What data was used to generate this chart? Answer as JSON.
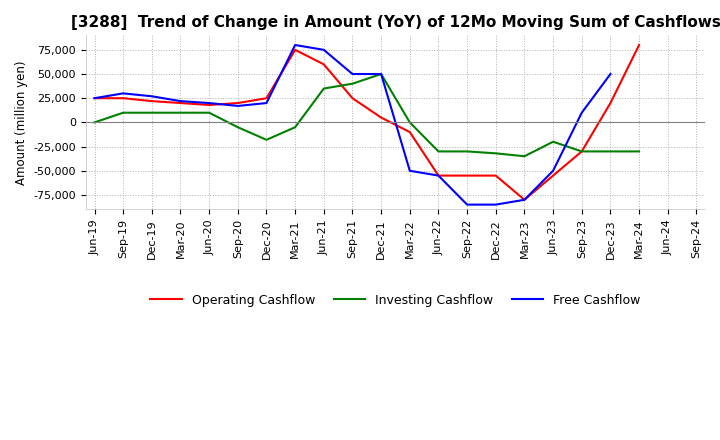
{
  "title": "[3288]  Trend of Change in Amount (YoY) of 12Mo Moving Sum of Cashflows",
  "ylabel": "Amount (million yen)",
  "ylim": [
    -90000,
    90000
  ],
  "yticks": [
    -75000,
    -50000,
    -25000,
    0,
    25000,
    50000,
    75000
  ],
  "x_labels": [
    "Jun-19",
    "Sep-19",
    "Dec-19",
    "Mar-20",
    "Jun-20",
    "Sep-20",
    "Dec-20",
    "Mar-21",
    "Jun-21",
    "Sep-21",
    "Dec-21",
    "Mar-22",
    "Jun-22",
    "Sep-22",
    "Dec-22",
    "Mar-23",
    "Jun-23",
    "Sep-23",
    "Dec-23",
    "Mar-24",
    "Jun-24",
    "Sep-24"
  ],
  "operating": [
    25000,
    25000,
    22000,
    20000,
    18000,
    20000,
    25000,
    75000,
    60000,
    25000,
    5000,
    -10000,
    -55000,
    -55000,
    -55000,
    -80000,
    -55000,
    -30000,
    20000,
    80000,
    null,
    null
  ],
  "investing": [
    0,
    10000,
    10000,
    10000,
    10000,
    -5000,
    -18000,
    -5000,
    35000,
    40000,
    50000,
    0,
    -30000,
    -30000,
    -32000,
    -35000,
    -20000,
    -30000,
    -30000,
    -30000,
    null,
    null
  ],
  "free": [
    25000,
    30000,
    27000,
    22000,
    20000,
    17000,
    20000,
    80000,
    75000,
    50000,
    50000,
    -50000,
    -55000,
    -85000,
    -85000,
    -80000,
    -50000,
    10000,
    50000,
    null,
    null,
    null
  ],
  "colors": {
    "operating": "#ff0000",
    "investing": "#008000",
    "free": "#0000ff"
  },
  "background_color": "#ffffff",
  "grid_color": "#b0b0b0",
  "title_fontsize": 11,
  "legend_fontsize": 9,
  "tick_fontsize": 8
}
